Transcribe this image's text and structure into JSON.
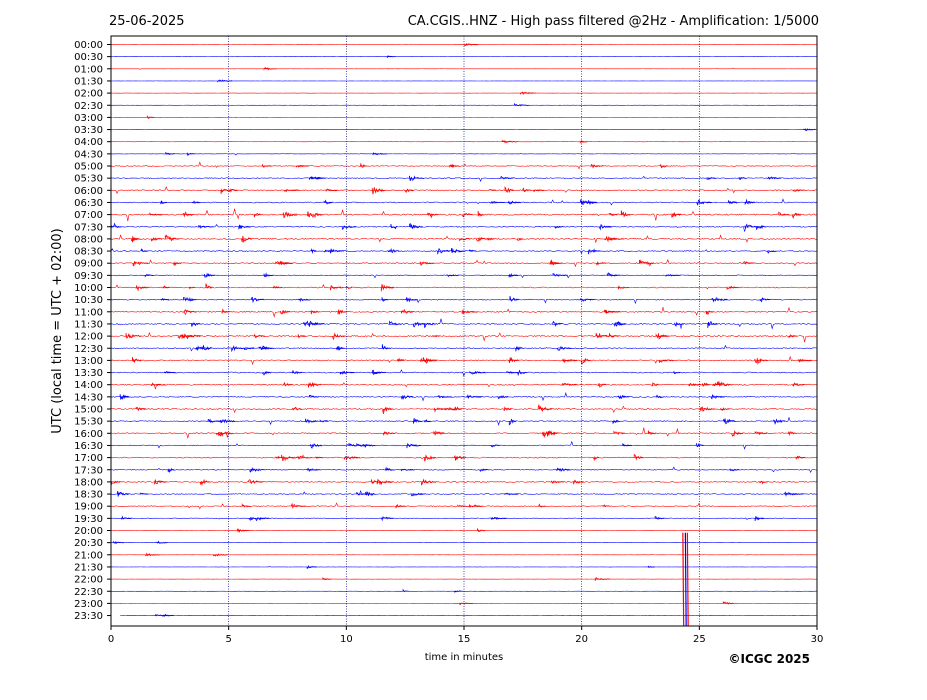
{
  "header": {
    "date": "25-06-2025",
    "title": "CA.CGIS..HNZ - High pass filtered @2Hz - Amplification: 1/5000"
  },
  "footer": {
    "copyright": "©ICGC 2025"
  },
  "colors": {
    "trace_a": "#ff0000",
    "trace_b": "#0000ff",
    "grid": "#000080",
    "frame": "#000000"
  },
  "chart_data": {
    "type": "line",
    "xlabel": "time in minutes",
    "ylabel": "UTC (local time = UTC + 02:00)",
    "xlim": [
      0,
      30
    ],
    "xticks": [
      0,
      5,
      10,
      15,
      20,
      25,
      30
    ],
    "vertical_gridlines_at": [
      5,
      10,
      15,
      20,
      25
    ],
    "row_labels": [
      "00:00",
      "00:30",
      "01:00",
      "01:30",
      "02:00",
      "02:30",
      "03:00",
      "03:30",
      "04:00",
      "04:30",
      "05:00",
      "05:30",
      "06:00",
      "06:30",
      "07:00",
      "07:30",
      "08:00",
      "08:30",
      "09:00",
      "09:30",
      "10:00",
      "10:30",
      "11:00",
      "11:30",
      "12:00",
      "12:30",
      "13:00",
      "13:30",
      "14:00",
      "14:30",
      "15:00",
      "15:30",
      "16:00",
      "16:30",
      "17:00",
      "17:30",
      "18:00",
      "18:30",
      "19:00",
      "19:30",
      "20:00",
      "20:30",
      "21:00",
      "21:30",
      "22:00",
      "22:30",
      "23:00",
      "23:30"
    ],
    "row_colors": [
      "red",
      "blue"
    ],
    "noise_level": [
      0.1,
      0.1,
      0.1,
      0.1,
      0.1,
      0.1,
      0.1,
      0.1,
      0.15,
      0.2,
      0.5,
      0.6,
      0.8,
      0.7,
      0.9,
      0.7,
      0.8,
      0.7,
      0.8,
      0.6,
      0.7,
      0.7,
      0.8,
      0.8,
      0.9,
      0.7,
      0.8,
      0.7,
      0.8,
      0.7,
      0.8,
      0.7,
      0.8,
      0.6,
      0.7,
      0.6,
      0.7,
      0.6,
      0.6,
      0.5,
      0.15,
      0.12,
      0.12,
      0.12,
      0.12,
      0.12,
      0.12,
      0.15
    ],
    "large_event": {
      "row": "21:00",
      "minute": 24.3,
      "note": "high-amplitude arrival spanning rows 21:00 to 23:30"
    },
    "last_row_start_minute": 0.4
  }
}
